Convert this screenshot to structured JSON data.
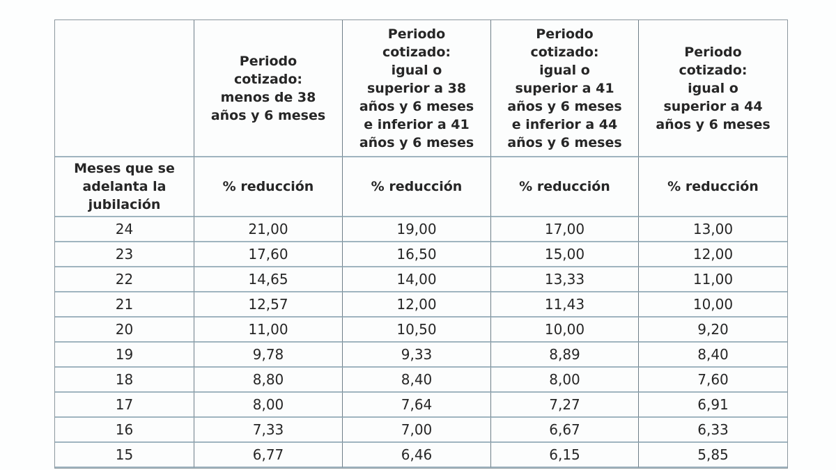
{
  "chart_data": {
    "type": "table",
    "title": "",
    "columns": [
      "Meses que se adelanta la jubilación",
      "Periodo cotizado: menos de 38 años y 6 meses",
      "Periodo cotizado: igual o superior a 38 años y 6 meses e inferior a 41 años y 6 meses",
      "Periodo cotizado: igual o superior a 41 años y 6 meses e inferior a 44 años y 6 meses",
      "Periodo cotizado: igual o superior a 44 años y 6 meses"
    ],
    "subheaders": [
      "Meses que se adelanta la jubilación",
      "% reducción",
      "% reducción",
      "% reducción",
      "% reducción"
    ],
    "rows": [
      [
        "24",
        "21,00",
        "19,00",
        "17,00",
        "13,00"
      ],
      [
        "23",
        "17,60",
        "16,50",
        "15,00",
        "12,00"
      ],
      [
        "22",
        "14,65",
        "14,00",
        "13,33",
        "11,00"
      ],
      [
        "21",
        "12,57",
        "12,00",
        "11,43",
        "10,00"
      ],
      [
        "20",
        "11,00",
        "10,50",
        "10,00",
        "9,20"
      ],
      [
        "19",
        "9,78",
        "9,33",
        "8,89",
        "8,40"
      ],
      [
        "18",
        "8,80",
        "8,40",
        "8,00",
        "7,60"
      ],
      [
        "17",
        "8,00",
        "7,64",
        "7,27",
        "6,91"
      ],
      [
        "16",
        "7,33",
        "7,00",
        "6,67",
        "6,33"
      ],
      [
        "15",
        "6,77",
        "6,46",
        "6,15",
        "5,85"
      ]
    ]
  },
  "table": {
    "header_row1": [
      "",
      "Periodo\ncotizado:\nmenos de 38\naños y 6 meses",
      "Periodo\ncotizado:\nigual o\nsuperior a 38\naños y 6 meses\ne inferior a 41\naños y 6 meses",
      "Periodo\ncotizado:\nigual o\nsuperior a 41\naños y 6 meses\ne inferior a 44\naños y 6 meses",
      "Periodo\ncotizado:\nigual o\nsuperior a 44\naños y 6 meses"
    ],
    "header_row2": [
      "Meses que se\nadelanta la\njubilación",
      "% reducción",
      "% reducción",
      "% reducción",
      "% reducción"
    ]
  },
  "colors": {
    "horizontal_border": "#9fb4bf",
    "vertical_border": "#6e7e88",
    "outer_border": "#8b979e",
    "cell_background": "#fcfdfd",
    "text": "#262626",
    "page_background": "#fdfefe"
  }
}
